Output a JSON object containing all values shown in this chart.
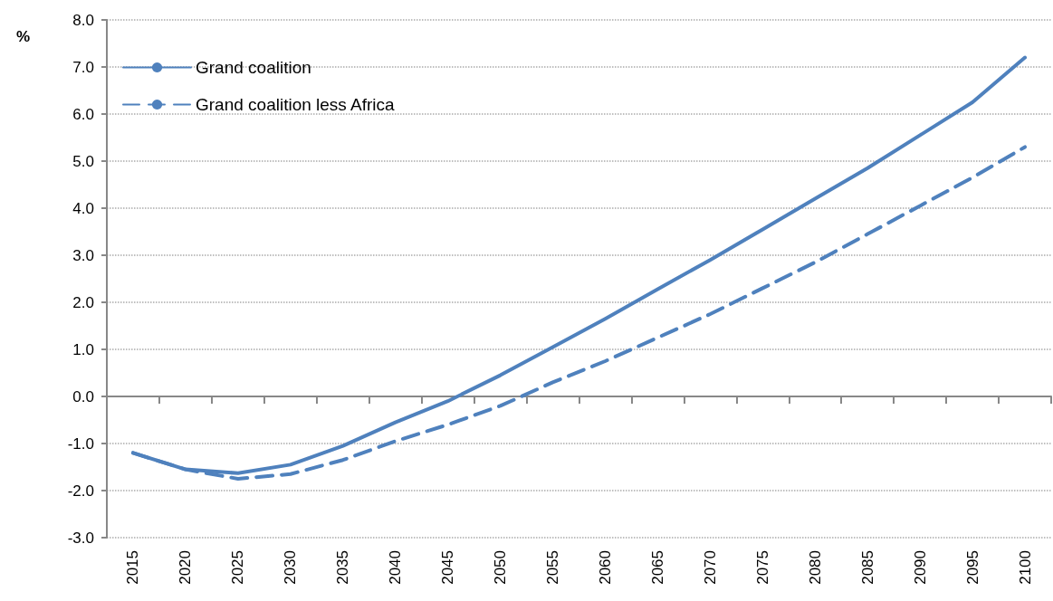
{
  "chart_data": {
    "type": "line",
    "ylabel": "%",
    "categories": [
      "2015",
      "2020",
      "2025",
      "2030",
      "2035",
      "2040",
      "2045",
      "2050",
      "2055",
      "2060",
      "2065",
      "2070",
      "2075",
      "2080",
      "2085",
      "2090",
      "2095",
      "2100"
    ],
    "series": [
      {
        "name": "Grand coalition",
        "color": "#4f81bd",
        "line_style": "solid",
        "values": [
          -1.2,
          -1.55,
          -1.63,
          -1.45,
          -1.05,
          -0.55,
          -0.1,
          0.45,
          1.05,
          1.65,
          2.28,
          2.9,
          3.55,
          4.2,
          4.85,
          5.55,
          6.25,
          7.2
        ]
      },
      {
        "name": "Grand coalition less Africa",
        "color": "#4f81bd",
        "line_style": "dashed",
        "values": [
          -1.2,
          -1.55,
          -1.75,
          -1.65,
          -1.35,
          -0.95,
          -0.6,
          -0.2,
          0.3,
          0.75,
          1.25,
          1.75,
          2.3,
          2.85,
          3.45,
          4.05,
          4.65,
          5.3
        ]
      }
    ],
    "ylim": [
      -3,
      8
    ],
    "yticks": [
      {
        "value": -3,
        "label": "-3.0"
      },
      {
        "value": -2,
        "label": "-2.0"
      },
      {
        "value": -1,
        "label": "-1.0"
      },
      {
        "value": 0,
        "label": "0.0"
      },
      {
        "value": 1,
        "label": "1.0"
      },
      {
        "value": 2,
        "label": "2.0"
      },
      {
        "value": 3,
        "label": "3.0"
      },
      {
        "value": 4,
        "label": "4.0"
      },
      {
        "value": 5,
        "label": "5.0"
      },
      {
        "value": 6,
        "label": "6.0"
      },
      {
        "value": 7,
        "label": "7.0"
      },
      {
        "value": 8,
        "label": "8.0"
      }
    ],
    "grid": "y",
    "legend": "top left",
    "marker": "none"
  }
}
